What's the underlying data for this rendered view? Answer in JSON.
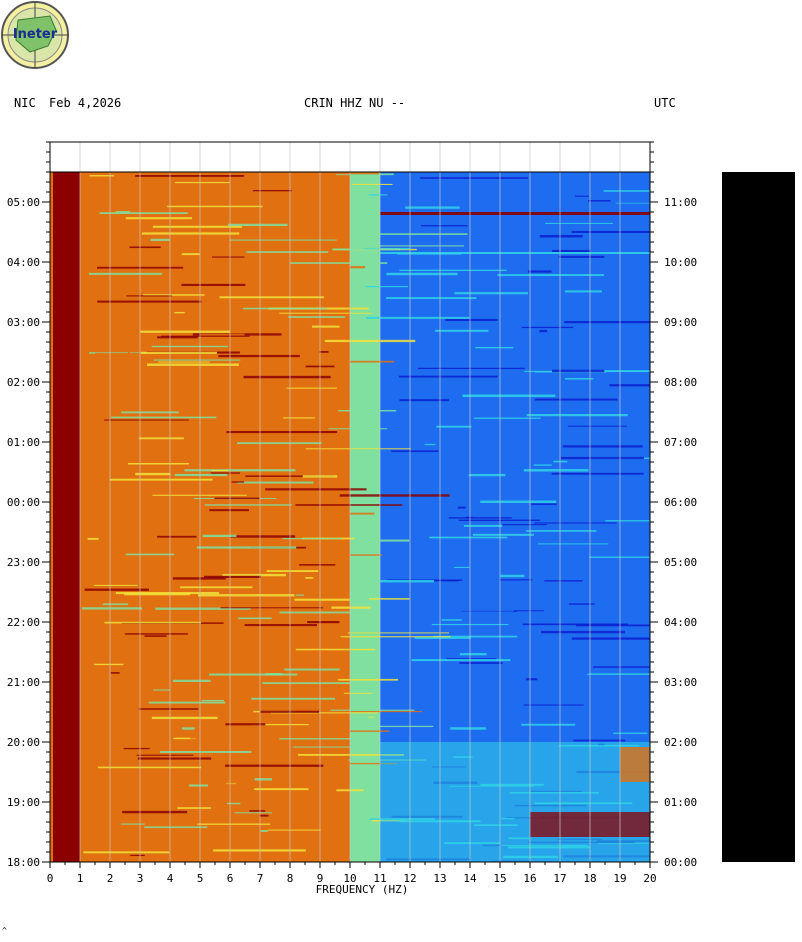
{
  "header": {
    "network": "NIC",
    "date": "Feb 4,2026",
    "station": "CRIN HHZ NU --",
    "tz": "UTC"
  },
  "logo": {
    "text": "ineter"
  },
  "footnote": "^",
  "colors": {
    "very_low": "#0a1fd0",
    "low": "#1e6cf0",
    "mid_low": "#2fd3e6",
    "mid": "#7fe0a0",
    "mid_high": "#f2e23a",
    "high": "#e07010",
    "very_high": "#8b0000"
  },
  "chart_data": {
    "type": "heatmap",
    "title": "CRIN HHZ NU --",
    "xlabel": "FREQUENCY (HZ)",
    "x_ticks": [
      "0",
      "1",
      "2",
      "3",
      "4",
      "5",
      "6",
      "7",
      "8",
      "9",
      "10",
      "11",
      "12",
      "13",
      "14",
      "15",
      "16",
      "17",
      "18",
      "19",
      "20"
    ],
    "xlim": [
      0,
      20
    ],
    "y_left_label": "NIC",
    "y_right_label": "UTC",
    "y_left_ticks": [
      "05:00",
      "04:00",
      "03:00",
      "02:00",
      "01:00",
      "00:00",
      "23:00",
      "22:00",
      "21:00",
      "20:00",
      "19:00",
      "18:00"
    ],
    "y_right_ticks": [
      "11:00",
      "10:00",
      "09:00",
      "08:00",
      "07:00",
      "06:00",
      "05:00",
      "04:00",
      "03:00",
      "02:00",
      "01:00",
      "00:00"
    ],
    "time_range_hours": [
      0,
      11.5
    ],
    "regions": [
      {
        "freq": [
          0.1,
          1.0
        ],
        "level": "very_high"
      },
      {
        "freq": [
          1.0,
          10.0
        ],
        "level": "high"
      },
      {
        "freq": [
          10.0,
          11.0
        ],
        "level": "mid"
      },
      {
        "freq": [
          11.0,
          20.0
        ],
        "level": "low"
      }
    ],
    "grid": true
  }
}
